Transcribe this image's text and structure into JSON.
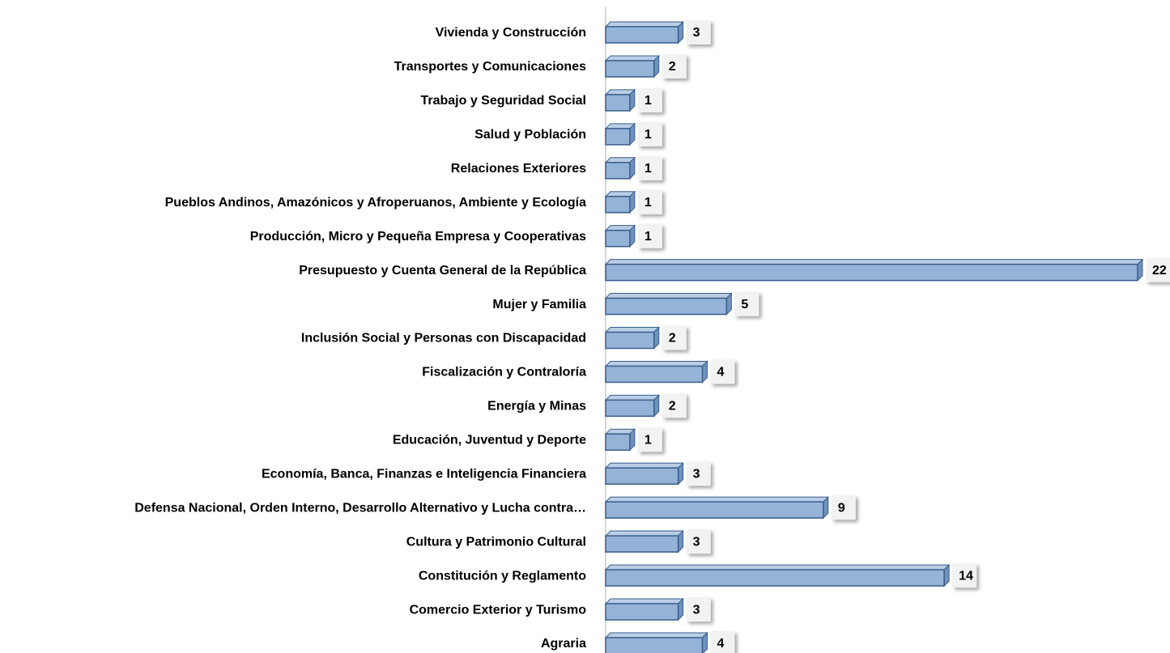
{
  "chart_data": {
    "type": "bar",
    "orientation": "horizontal",
    "color": "#95b3d7",
    "edge_color": "#385d8a",
    "categories": [
      "Vivienda y Construcción",
      "Transportes y Comunicaciones",
      "Trabajo y Seguridad Social",
      "Salud y Población",
      "Relaciones Exteriores",
      "Pueblos Andinos, Amazónicos y Afroperuanos, Ambiente y Ecología",
      "Producción, Micro y Pequeña Empresa y Cooperativas",
      "Presupuesto y Cuenta General de la República",
      "Mujer y Familia",
      "Inclusión Social y Personas con Discapacidad",
      "Fiscalización y Contraloría",
      "Energía y Minas",
      "Educación, Juventud y Deporte",
      "Economía, Banca, Finanzas e Inteligencia Financiera",
      "Defensa Nacional, Orden Interno, Desarrollo Alternativo y Lucha contra…",
      "Cultura y Patrimonio Cultural",
      "Constitución y Reglamento",
      "Comercio Exterior y Turismo",
      "Agraria"
    ],
    "values": [
      3,
      2,
      1,
      1,
      1,
      1,
      1,
      22,
      5,
      2,
      4,
      2,
      1,
      3,
      9,
      3,
      14,
      3,
      4
    ]
  }
}
